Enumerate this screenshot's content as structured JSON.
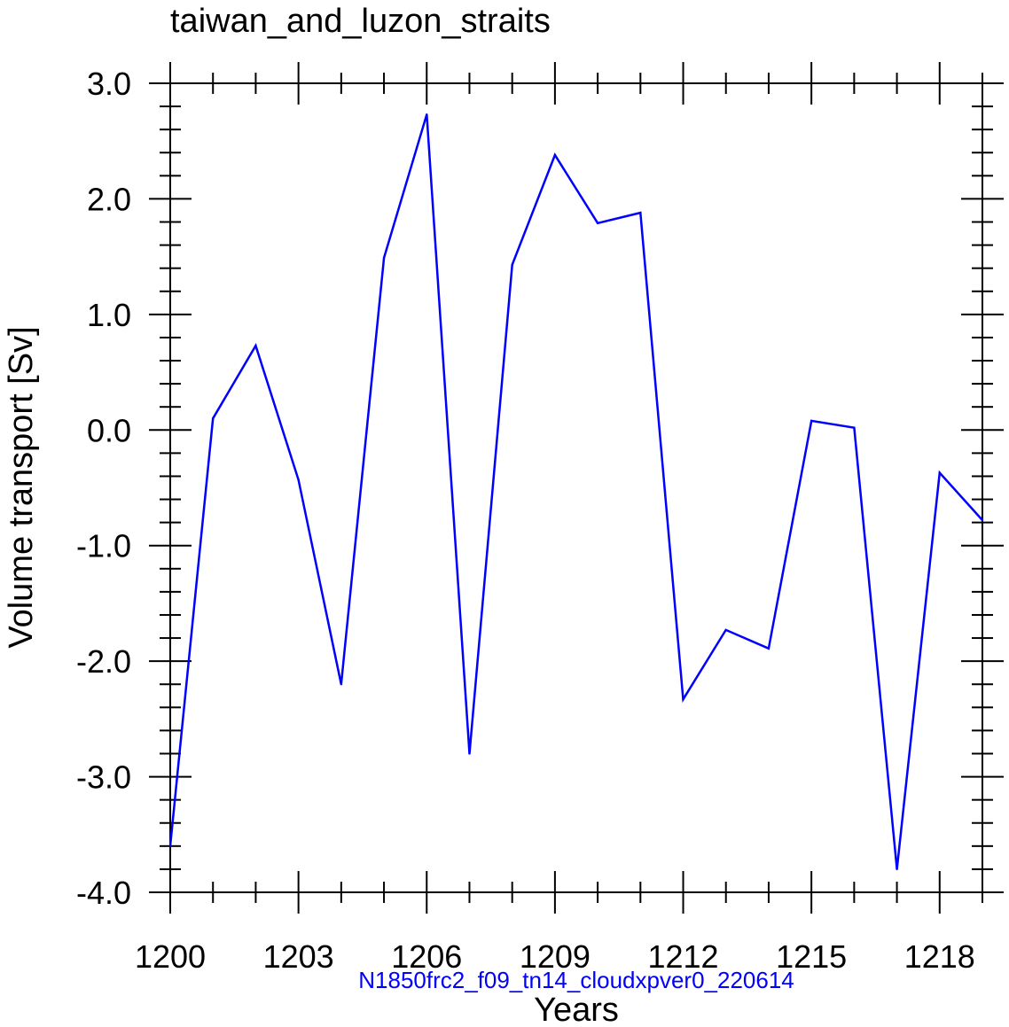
{
  "chart_data": {
    "type": "line",
    "title": "taiwan_and_luzon_straits",
    "xlabel": "Years",
    "ylabel": "Volume transport [Sv]",
    "subtitle": "N1850frc2_f09_tn14_cloudxpver0_220614",
    "xlim": [
      1200,
      1219
    ],
    "ylim": [
      -4.0,
      3.0
    ],
    "x_ticks": [
      1200,
      1203,
      1206,
      1209,
      1212,
      1215,
      1218
    ],
    "x_tick_labels": [
      "1200",
      "1203",
      "1206",
      "1209",
      "1212",
      "1215",
      "1218"
    ],
    "y_ticks": [
      3.0,
      2.0,
      1.0,
      0.0,
      -1.0,
      -2.0,
      -3.0,
      -4.0
    ],
    "y_tick_labels": [
      "3.0",
      "2.0",
      "1.0",
      "0.0",
      "-1.0",
      "-2.0",
      "-3.0",
      "-4.0"
    ],
    "series": [
      {
        "name": "volume transport",
        "color": "#0000ff",
        "x": [
          1200,
          1201,
          1202,
          1203,
          1204,
          1205,
          1206,
          1207,
          1208,
          1209,
          1210,
          1211,
          1212,
          1213,
          1214,
          1215,
          1216,
          1217,
          1218,
          1219
        ],
        "values": [
          -3.6,
          0.1,
          0.73,
          -0.43,
          -2.2,
          1.49,
          2.73,
          -2.8,
          1.43,
          2.38,
          1.79,
          1.88,
          -2.33,
          -1.73,
          -1.89,
          0.08,
          0.02,
          -3.8,
          -0.37,
          -0.78
        ]
      }
    ],
    "grid": false,
    "colors": {
      "axis": "#000000",
      "line": "#0000ff",
      "subtitle": "#0000ff",
      "background": "#ffffff"
    }
  }
}
